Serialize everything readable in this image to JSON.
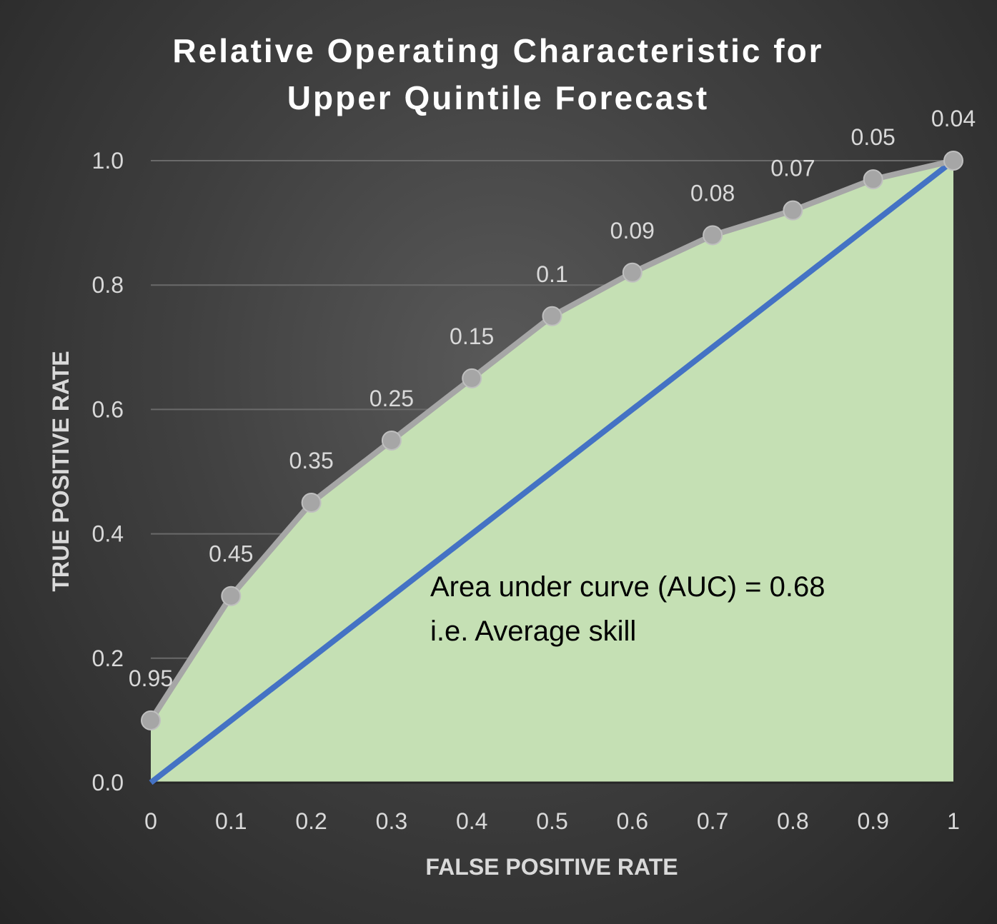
{
  "chart_data": {
    "type": "line",
    "title_lines": [
      "Relative Operating Characteristic for",
      "Upper Quintile Forecast"
    ],
    "xlabel": "FALSE POSITIVE RATE",
    "ylabel": "TRUE POSITIVE RATE",
    "xlim": [
      0,
      1
    ],
    "ylim": [
      0,
      1
    ],
    "x_ticks": [
      "0",
      "0.1",
      "0.2",
      "0.3",
      "0.4",
      "0.5",
      "0.6",
      "0.7",
      "0.8",
      "0.9",
      "1"
    ],
    "y_ticks": [
      "0.0",
      "0.2",
      "0.4",
      "0.6",
      "0.8",
      "1.0"
    ],
    "grid": "horizontal",
    "series": [
      {
        "x": [
          0,
          0.1,
          0.2,
          0.3,
          0.4,
          0.5,
          0.6,
          0.7,
          0.8,
          0.9,
          1
        ],
        "y": [
          0.1,
          0.3,
          0.45,
          0.55,
          0.65,
          0.75,
          0.82,
          0.88,
          0.92,
          0.97,
          1.0
        ],
        "data_labels": [
          "0.95",
          "0.45",
          "0.35",
          "0.25",
          "0.15",
          "0.1",
          "0.09",
          "0.08",
          "0.07",
          "0.05",
          "0.04"
        ],
        "color": "#a6a6a6",
        "fill_under": "#c5e0b4"
      },
      {
        "x": [
          0,
          1
        ],
        "y": [
          0,
          1
        ],
        "color": "#4472c4"
      }
    ],
    "annotation_lines": [
      "Area under curve (AUC) = 0.68",
      "i.e. Average skill"
    ]
  }
}
